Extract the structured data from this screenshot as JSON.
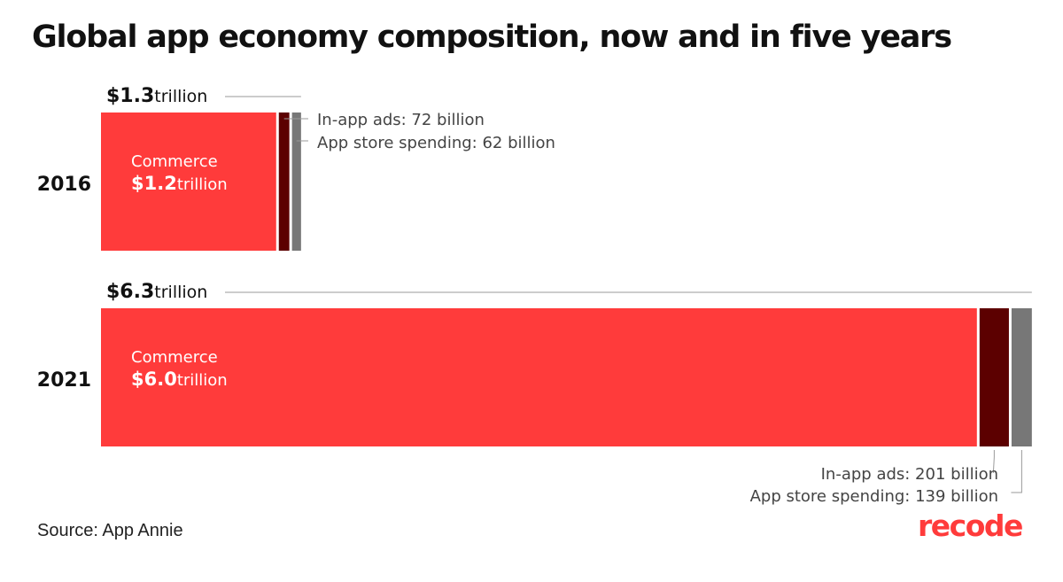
{
  "title": "Global app economy composition, now and in five years",
  "source": "Source: App Annie",
  "logo_text": "recode",
  "colors": {
    "commerce": "#ff3b3b",
    "in_app_ads": "#5c0000",
    "app_store": "#777777",
    "leader": "#9a9a9a",
    "text": "#111111",
    "annotation": "#444444"
  },
  "chart_data": {
    "type": "bar",
    "orientation": "horizontal",
    "stacked": true,
    "title": "Global app economy composition, now and in five years",
    "categories": [
      "2016",
      "2021"
    ],
    "series": [
      {
        "name": "Commerce",
        "values": [
          1200,
          6000
        ]
      },
      {
        "name": "In-app ads",
        "values": [
          72,
          201
        ]
      },
      {
        "name": "App store spending",
        "values": [
          62,
          139
        ]
      }
    ],
    "unit": "billion USD",
    "bars": [
      {
        "year": "2016",
        "total_value": "$1.3",
        "total_unit": "trillion",
        "commerce_label": "Commerce",
        "commerce_value": "$1.2",
        "commerce_unit": "trillion",
        "ads_label": "In-app ads: 72 billion",
        "store_label": "App store spending: 62 billion"
      },
      {
        "year": "2021",
        "total_value": "$6.3",
        "total_unit": "trillion",
        "commerce_label": "Commerce",
        "commerce_value": "$6.0",
        "commerce_unit": "trillion",
        "ads_label": "In-app ads: 201 billion",
        "store_label": "App store spending: 139 billion"
      }
    ]
  }
}
